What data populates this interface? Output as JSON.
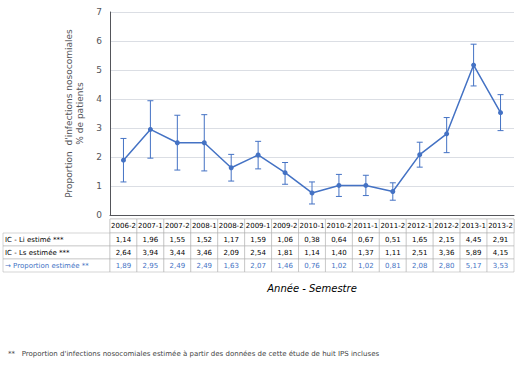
{
  "chart_data": {
    "type": "line",
    "categories": [
      "2006-2",
      "2007-1",
      "2007-2",
      "2008-1",
      "2008-2",
      "2009-1",
      "2009-2",
      "2010-1",
      "2010-2",
      "2011-1",
      "2011-2",
      "2012-1",
      "2012-2",
      "2013-1",
      "2013-2"
    ],
    "values": [
      1.89,
      2.95,
      2.49,
      2.49,
      1.63,
      2.07,
      1.46,
      0.76,
      1.02,
      1.02,
      0.81,
      2.08,
      2.8,
      5.17,
      3.53
    ],
    "error_low": [
      1.14,
      1.96,
      1.55,
      1.52,
      1.17,
      1.59,
      1.06,
      0.38,
      0.64,
      0.67,
      0.51,
      1.65,
      2.15,
      4.45,
      2.91
    ],
    "error_high": [
      2.64,
      3.94,
      3.44,
      3.46,
      2.09,
      2.54,
      1.81,
      1.14,
      1.4,
      1.37,
      1.11,
      2.51,
      3.36,
      5.89,
      4.15
    ],
    "color": "#4472C4",
    "marker": "circle",
    "line_style": "solid",
    "ylabel": "Proportion  d'infections nosocomiales\n% de patients",
    "xlabel": "Année - Semestre",
    "footnote": "**   Proportion d'infections nosocomiales estimée à partir des données de cette étude de huit IPS incluses",
    "ylim": [
      0,
      7
    ],
    "yticks": [
      0,
      1,
      2,
      3,
      4,
      5,
      6,
      7
    ],
    "grid": true,
    "table": [
      {
        "label": "IC - Li estimé ***",
        "color": "black",
        "cells": [
          "1,14",
          "1,96",
          "1,55",
          "1,52",
          "1,17",
          "1,59",
          "1,06",
          "0,38",
          "0,64",
          "0,67",
          "0,51",
          "1,65",
          "2,15",
          "4,45",
          "2,91"
        ]
      },
      {
        "label": "IC - Ls estimée ***",
        "color": "black",
        "cells": [
          "2,64",
          "3,94",
          "3,44",
          "3,46",
          "2,09",
          "2,54",
          "1,81",
          "1,14",
          "1,40",
          "1,37",
          "1,11",
          "2,51",
          "3,36",
          "5,89",
          "4,15"
        ]
      },
      {
        "label": "→ Proportion estimée **",
        "color": "#4472C4",
        "cells": [
          "1,89",
          "2,95",
          "2,49",
          "2,49",
          "1,63",
          "2,07",
          "1,46",
          "0,76",
          "1,02",
          "1,02",
          "0,81",
          "2,08",
          "2,80",
          "5,17",
          "3,53"
        ]
      }
    ]
  }
}
